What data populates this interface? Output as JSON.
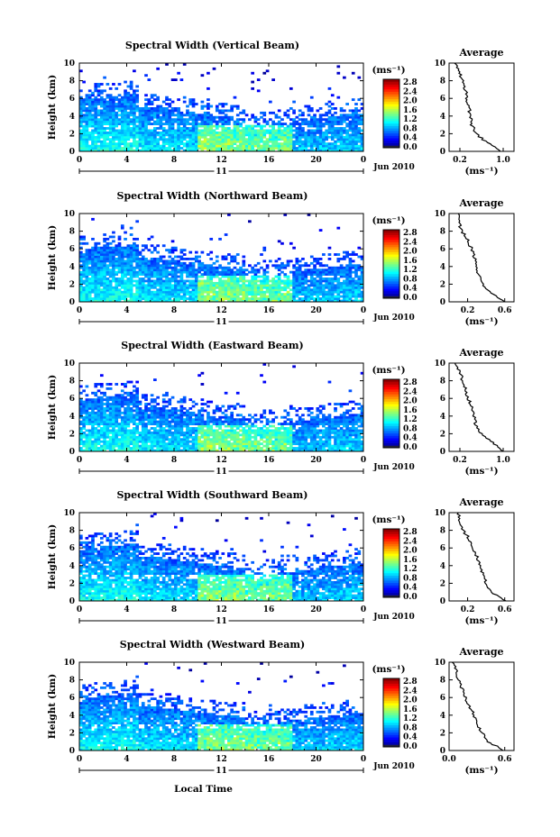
{
  "figure": {
    "xlabel": "Local Time",
    "date_label": "Jun 2010",
    "day_label": "11",
    "unit_label": "(ms⁻¹)",
    "average_title": "Average",
    "average_xlabel": "(ms⁻¹)"
  },
  "chart_data": [
    {
      "type": "heatmap",
      "title": "Spectral Width (Vertical Beam)",
      "ylabel": "Height (km)",
      "xlim": [
        0,
        24
      ],
      "ylim": [
        0,
        10
      ],
      "xticks": [
        "0",
        "4",
        "8",
        "12",
        "16",
        "20",
        "0"
      ],
      "yticks": [
        "0",
        "2",
        "4",
        "6",
        "8",
        "10"
      ],
      "colorbar": {
        "range": [
          0.0,
          2.8
        ],
        "ticks": [
          "2.8",
          "2.4",
          "2.0",
          "1.6",
          "1.2",
          "0.8",
          "0.4",
          "0.0"
        ]
      },
      "average_profile": {
        "xticks": [
          "0.2",
          "1.0"
        ],
        "xlim": [
          0.0,
          1.2
        ],
        "ylim": [
          0,
          10
        ],
        "width": [
          0.95,
          0.7,
          0.5,
          0.42,
          0.4,
          0.36,
          0.33,
          0.3,
          0.25,
          0.18,
          0.1
        ],
        "height": [
          0,
          1,
          2,
          3,
          4,
          5,
          6,
          7,
          8,
          9,
          10
        ]
      }
    },
    {
      "type": "heatmap",
      "title": "Spectral Width (Northward Beam)",
      "ylabel": "Height (km)",
      "xlim": [
        0,
        24
      ],
      "ylim": [
        0,
        10
      ],
      "xticks": [
        "0",
        "4",
        "8",
        "12",
        "16",
        "20",
        "0"
      ],
      "yticks": [
        "0",
        "2",
        "4",
        "6",
        "8",
        "10"
      ],
      "colorbar": {
        "range": [
          0.0,
          2.8
        ],
        "ticks": [
          "2.8",
          "2.4",
          "2.0",
          "1.6",
          "1.2",
          "0.8",
          "0.4",
          "0.0"
        ]
      },
      "average_profile": {
        "xticks": [
          "0.2",
          "0.6"
        ],
        "xlim": [
          0.0,
          0.7
        ],
        "ylim": [
          0,
          10
        ],
        "width": [
          0.6,
          0.45,
          0.36,
          0.32,
          0.3,
          0.28,
          0.24,
          0.2,
          0.14,
          0.1,
          0.1
        ],
        "height": [
          0,
          1,
          2,
          3,
          4,
          5,
          6,
          7,
          8,
          9,
          10
        ]
      }
    },
    {
      "type": "heatmap",
      "title": "Spectral Width (Eastward Beam)",
      "ylabel": "Height (km)",
      "xlim": [
        0,
        24
      ],
      "ylim": [
        0,
        10
      ],
      "xticks": [
        "0",
        "4",
        "8",
        "12",
        "16",
        "20",
        "0"
      ],
      "yticks": [
        "0",
        "2",
        "4",
        "6",
        "8",
        "10"
      ],
      "colorbar": {
        "range": [
          0.0,
          2.8
        ],
        "ticks": [
          "2.8",
          "2.4",
          "2.0",
          "1.6",
          "1.2",
          "0.8",
          "0.4",
          "0.0"
        ]
      },
      "average_profile": {
        "xticks": [
          "0.2",
          "1.0"
        ],
        "xlim": [
          0.0,
          1.2
        ],
        "ylim": [
          0,
          10
        ],
        "width": [
          1.0,
          0.8,
          0.6,
          0.5,
          0.45,
          0.42,
          0.35,
          0.3,
          0.25,
          0.2,
          0.1
        ],
        "height": [
          0,
          1,
          2,
          3,
          4,
          5,
          6,
          7,
          8,
          9,
          10
        ]
      }
    },
    {
      "type": "heatmap",
      "title": "Spectral Width (Southward Beam)",
      "ylabel": "Height (km)",
      "xlim": [
        0,
        24
      ],
      "ylim": [
        0,
        10
      ],
      "xticks": [
        "0",
        "4",
        "8",
        "12",
        "16",
        "20",
        "0"
      ],
      "yticks": [
        "0",
        "2",
        "4",
        "6",
        "8",
        "10"
      ],
      "colorbar": {
        "range": [
          0.0,
          2.8
        ],
        "ticks": [
          "2.8",
          "2.4",
          "2.0",
          "1.6",
          "1.2",
          "0.8",
          "0.4",
          "0.0"
        ]
      },
      "average_profile": {
        "xticks": [
          "0.2",
          "0.6"
        ],
        "xlim": [
          0.0,
          0.7
        ],
        "ylim": [
          0,
          10
        ],
        "width": [
          0.62,
          0.46,
          0.4,
          0.36,
          0.33,
          0.3,
          0.26,
          0.22,
          0.15,
          0.12,
          0.1
        ],
        "height": [
          0,
          1,
          2,
          3,
          4,
          5,
          6,
          7,
          8,
          9,
          10
        ]
      }
    },
    {
      "type": "heatmap",
      "title": "Spectral Width (Westward Beam)",
      "ylabel": "Height (km)",
      "xlim": [
        0,
        24
      ],
      "ylim": [
        0,
        10
      ],
      "xticks": [
        "0",
        "4",
        "8",
        "12",
        "16",
        "20",
        "0"
      ],
      "yticks": [
        "0",
        "2",
        "4",
        "6",
        "8",
        "10"
      ],
      "colorbar": {
        "range": [
          0.0,
          2.8
        ],
        "ticks": [
          "2.8",
          "2.4",
          "2.0",
          "1.6",
          "1.2",
          "0.8",
          "0.4",
          "0.0"
        ]
      },
      "average_profile": {
        "xticks": [
          "0.0",
          "0.6"
        ],
        "xlim": [
          0.0,
          0.7
        ],
        "ylim": [
          0,
          10
        ],
        "width": [
          0.6,
          0.42,
          0.36,
          0.3,
          0.27,
          0.22,
          0.18,
          0.14,
          0.1,
          0.08,
          0.05
        ],
        "height": [
          0,
          1,
          2,
          3,
          4,
          5,
          6,
          7,
          8,
          9,
          10
        ]
      }
    }
  ]
}
